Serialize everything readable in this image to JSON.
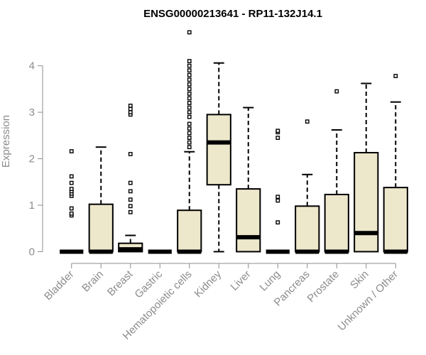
{
  "chart_data": {
    "type": "boxplot",
    "title": "ENSG00000213641 - RP11-132J14.1",
    "xlabel": "",
    "ylabel": "Expression",
    "ylim": [
      -0.1,
      4.85
    ],
    "yticks": [
      0,
      1,
      2,
      3,
      4
    ],
    "grid": false,
    "colors": {
      "box_fill": "#ede7cc",
      "stroke": "#000000",
      "axis": "#8c8c8c"
    },
    "categories": [
      "Bladder",
      "Brain",
      "Breast",
      "Gastric",
      "Hematopoietic cells",
      "Kidney",
      "Liver",
      "Lung",
      "Pancreas",
      "Prostate",
      "Skin",
      "Unknown / Other"
    ],
    "boxes": [
      {
        "category": "Bladder",
        "whisker_low": 0,
        "q1": 0,
        "median": 0,
        "q3": 0,
        "whisker_high": 0,
        "outliers": [
          0.78,
          0.82,
          0.93,
          1.2,
          1.25,
          1.3,
          1.35,
          1.48,
          1.62,
          2.16
        ]
      },
      {
        "category": "Brain",
        "whisker_low": 0,
        "q1": 0,
        "median": 0,
        "q3": 1.02,
        "whisker_high": 2.25,
        "outliers": []
      },
      {
        "category": "Breast",
        "whisker_low": 0,
        "q1": 0,
        "median": 0.05,
        "q3": 0.18,
        "whisker_high": 0.35,
        "outliers": [
          0.85,
          0.98,
          1.12,
          1.3,
          1.48,
          2.1,
          2.95,
          3.0,
          3.07,
          3.14
        ]
      },
      {
        "category": "Gastric",
        "whisker_low": 0,
        "q1": 0,
        "median": 0,
        "q3": 0,
        "whisker_high": 0,
        "outliers": []
      },
      {
        "category": "Hematopoietic cells",
        "whisker_low": 0,
        "q1": 0,
        "median": 0,
        "q3": 0.89,
        "whisker_high": 2.15,
        "outliers": [
          2.25,
          2.35,
          2.45,
          2.55,
          2.65,
          2.75,
          2.9,
          3.0,
          3.1,
          3.2,
          3.3,
          3.4,
          3.5,
          3.6,
          3.7,
          3.8,
          3.9,
          4.0,
          4.1,
          4.72
        ]
      },
      {
        "category": "Kidney",
        "whisker_low": 0,
        "q1": 1.44,
        "median": 2.35,
        "q3": 2.95,
        "whisker_high": 4.06,
        "outliers": []
      },
      {
        "category": "Liver",
        "whisker_low": 0,
        "q1": 0,
        "median": 0.31,
        "q3": 1.35,
        "whisker_high": 3.1,
        "outliers": []
      },
      {
        "category": "Lung",
        "whisker_low": 0,
        "q1": 0,
        "median": 0,
        "q3": 0,
        "whisker_high": 0,
        "outliers": [
          0.63,
          1.1,
          1.18,
          2.45,
          2.57,
          2.6
        ]
      },
      {
        "category": "Pancreas",
        "whisker_low": 0,
        "q1": 0,
        "median": 0,
        "q3": 0.98,
        "whisker_high": 1.66,
        "outliers": [
          2.8
        ]
      },
      {
        "category": "Prostate",
        "whisker_low": 0,
        "q1": 0,
        "median": 0,
        "q3": 1.23,
        "whisker_high": 2.62,
        "outliers": [
          3.45
        ]
      },
      {
        "category": "Skin",
        "whisker_low": 0,
        "q1": 0,
        "median": 0.4,
        "q3": 2.13,
        "whisker_high": 3.62,
        "outliers": []
      },
      {
        "category": "Unknown / Other",
        "whisker_low": 0,
        "q1": 0,
        "median": 0,
        "q3": 1.38,
        "whisker_high": 3.22,
        "outliers": [
          3.78
        ]
      }
    ]
  }
}
